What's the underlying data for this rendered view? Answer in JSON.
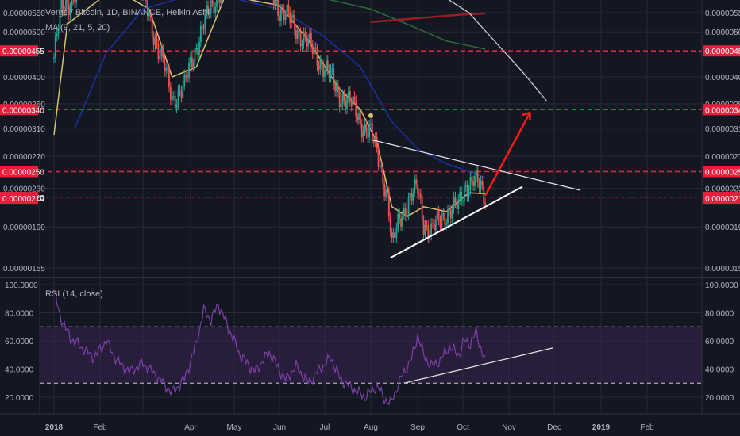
{
  "colors": {
    "background": "#131722",
    "grid": "#262a36",
    "axis_text": "#b2b5be",
    "candle_up": "#26a69a",
    "candle_down": "#ef5350",
    "ma9": "#d9c36a",
    "ma21": "#1e2f9e",
    "ma_long": "#2e6b3a",
    "ma_red": "#9c1c25",
    "rsi_line": "#7b3fa8",
    "rsi_band": "#3a2450",
    "level_label_bg": "#e91e3c",
    "trendline": "#e6e6e6",
    "arrow": "#ff1a1a",
    "white_line": "#d1d4dc"
  },
  "chart_data": [
    {
      "type": "candlestick",
      "title": "Verge / Bitcoin, 1D, BINANCE, Heikin Ashi",
      "indicator_label": "MA (9, 21, 5, 20)",
      "price_axis_ticks": [
        "0.00000550",
        "0.00000500",
        "0.00000400",
        "0.00000350",
        "0.00000310",
        "0.00000270",
        "0.00000230",
        "0.00000190",
        "0.00000155"
      ],
      "price_ticks_values": [
        550,
        500,
        400,
        350,
        310,
        270,
        230,
        190,
        155
      ],
      "marked_levels": [
        {
          "label": "0.00000455",
          "value": 455,
          "style": "dashed"
        },
        {
          "label": "0.00000340",
          "value": 340,
          "style": "dashed"
        },
        {
          "label": "0.00000250",
          "value": 250,
          "style": "dashed"
        },
        {
          "label": "0.00000220",
          "value": 220,
          "style": "dotted"
        },
        {
          "label": "0.00000219",
          "value": 219,
          "style": "none"
        }
      ],
      "x_labels": [
        "2018",
        "Feb",
        "Apr",
        "May",
        "Jun",
        "Jul",
        "Aug",
        "Sep",
        "Oct",
        "Nov",
        "Dec",
        "2019",
        "Feb"
      ],
      "ohlc_anchors": [
        [
          "2018-01-01",
          440
        ],
        [
          "2018-01-06",
          560
        ],
        [
          "2018-02-10",
          720
        ],
        [
          "2018-03-01",
          600
        ],
        [
          "2018-03-10",
          470
        ],
        [
          "2018-03-20",
          360
        ],
        [
          "2018-03-28",
          380
        ],
        [
          "2018-04-08",
          500
        ],
        [
          "2018-04-25",
          650
        ],
        [
          "2018-05-20",
          680
        ],
        [
          "2018-06-01",
          560
        ],
        [
          "2018-06-10",
          520
        ],
        [
          "2018-06-20",
          470
        ],
        [
          "2018-07-01",
          420
        ],
        [
          "2018-07-10",
          370
        ],
        [
          "2018-07-20",
          345
        ],
        [
          "2018-07-28",
          310
        ],
        [
          "2018-08-01",
          300
        ],
        [
          "2018-08-06",
          270
        ],
        [
          "2018-08-12",
          220
        ],
        [
          "2018-08-15",
          170
        ],
        [
          "2018-08-20",
          200
        ],
        [
          "2018-08-28",
          220
        ],
        [
          "2018-09-01",
          230
        ],
        [
          "2018-09-05",
          195
        ],
        [
          "2018-09-10",
          185
        ],
        [
          "2018-09-20",
          205
        ],
        [
          "2018-09-28",
          210
        ],
        [
          "2018-10-03",
          235
        ],
        [
          "2018-10-08",
          240
        ],
        [
          "2018-10-12",
          232
        ],
        [
          "2018-10-16",
          221
        ]
      ],
      "ma_lines": [
        {
          "name": "MA 9",
          "points": [
            [
              "2018-01-01",
              300
            ],
            [
              "2018-01-10",
              520
            ],
            [
              "2018-02-10",
              620
            ],
            [
              "2018-03-05",
              560
            ],
            [
              "2018-03-20",
              400
            ],
            [
              "2018-04-05",
              420
            ],
            [
              "2018-04-25",
              600
            ],
            [
              "2018-06-01",
              570
            ],
            [
              "2018-06-20",
              480
            ],
            [
              "2018-07-10",
              380
            ],
            [
              "2018-07-25",
              340
            ],
            [
              "2018-08-05",
              290
            ],
            [
              "2018-08-15",
              210
            ],
            [
              "2018-08-25",
              200
            ],
            [
              "2018-09-05",
              210
            ],
            [
              "2018-09-20",
              205
            ],
            [
              "2018-10-05",
              225
            ],
            [
              "2018-10-16",
              224
            ]
          ]
        },
        {
          "name": "MA 21",
          "points": [
            [
              "2018-01-15",
              310
            ],
            [
              "2018-02-05",
              450
            ],
            [
              "2018-03-01",
              560
            ],
            [
              "2018-04-01",
              600
            ],
            [
              "2018-05-01",
              590
            ],
            [
              "2018-06-01",
              560
            ],
            [
              "2018-06-30",
              490
            ],
            [
              "2018-07-25",
              420
            ],
            [
              "2018-08-15",
              320
            ],
            [
              "2018-09-01",
              280
            ],
            [
              "2018-09-20",
              260
            ],
            [
              "2018-10-05",
              250
            ],
            [
              "2018-10-16",
              243
            ]
          ]
        },
        {
          "name": "MA 5",
          "points": [
            [
              "2018-05-15",
              600
            ],
            [
              "2018-06-01",
              620
            ],
            [
              "2018-07-01",
              590
            ],
            [
              "2018-08-01",
              560
            ],
            [
              "2018-08-25",
              520
            ],
            [
              "2018-09-20",
              478
            ],
            [
              "2018-10-08",
              465
            ],
            [
              "2018-10-16",
              459
            ]
          ]
        },
        {
          "name": "MA 20",
          "points": [
            [
              "2018-08-01",
              525
            ],
            [
              "2018-09-01",
              535
            ],
            [
              "2018-10-01",
              545
            ],
            [
              "2018-10-16",
              548
            ]
          ]
        },
        {
          "name": "MA long",
          "points": [
            [
              "2018-09-10",
              620
            ],
            [
              "2018-10-05",
              550
            ],
            [
              "2018-11-10",
              410
            ],
            [
              "2018-11-26",
              355
            ]
          ]
        }
      ]
    },
    {
      "type": "line",
      "title": "RSI (14, close)",
      "rsi_axis_ticks": [
        "100.0000",
        "80.0000",
        "60.0000",
        "40.0000",
        "20.0000"
      ],
      "rsi_ticks_values": [
        100,
        80,
        60,
        40,
        20
      ],
      "overbought": 70,
      "oversold": 30,
      "rsi_values": [
        [
          "2018-01-01",
          95
        ],
        [
          "2018-01-05",
          78
        ],
        [
          "2018-01-12",
          62
        ],
        [
          "2018-01-20",
          55
        ],
        [
          "2018-01-28",
          48
        ],
        [
          "2018-02-05",
          60
        ],
        [
          "2018-02-12",
          46
        ],
        [
          "2018-02-20",
          38
        ],
        [
          "2018-03-01",
          44
        ],
        [
          "2018-03-10",
          35
        ],
        [
          "2018-03-20",
          23
        ],
        [
          "2018-03-28",
          33
        ],
        [
          "2018-04-05",
          58
        ],
        [
          "2018-04-10",
          82
        ],
        [
          "2018-04-15",
          75
        ],
        [
          "2018-04-20",
          86
        ],
        [
          "2018-04-26",
          72
        ],
        [
          "2018-05-05",
          50
        ],
        [
          "2018-05-15",
          38
        ],
        [
          "2018-05-25",
          52
        ],
        [
          "2018-06-05",
          32
        ],
        [
          "2018-06-12",
          42
        ],
        [
          "2018-06-20",
          30
        ],
        [
          "2018-06-28",
          40
        ],
        [
          "2018-07-05",
          48
        ],
        [
          "2018-07-12",
          32
        ],
        [
          "2018-07-20",
          26
        ],
        [
          "2018-07-28",
          20
        ],
        [
          "2018-08-05",
          28
        ],
        [
          "2018-08-10",
          19
        ],
        [
          "2018-08-14",
          15
        ],
        [
          "2018-08-18",
          26
        ],
        [
          "2018-08-22",
          36
        ],
        [
          "2018-08-28",
          47
        ],
        [
          "2018-09-01",
          64
        ],
        [
          "2018-09-05",
          50
        ],
        [
          "2018-09-10",
          42
        ],
        [
          "2018-09-16",
          46
        ],
        [
          "2018-09-22",
          56
        ],
        [
          "2018-09-28",
          50
        ],
        [
          "2018-10-02",
          60
        ],
        [
          "2018-10-06",
          58
        ],
        [
          "2018-10-10",
          66
        ],
        [
          "2018-10-13",
          55
        ],
        [
          "2018-10-16",
          45
        ]
      ]
    }
  ]
}
